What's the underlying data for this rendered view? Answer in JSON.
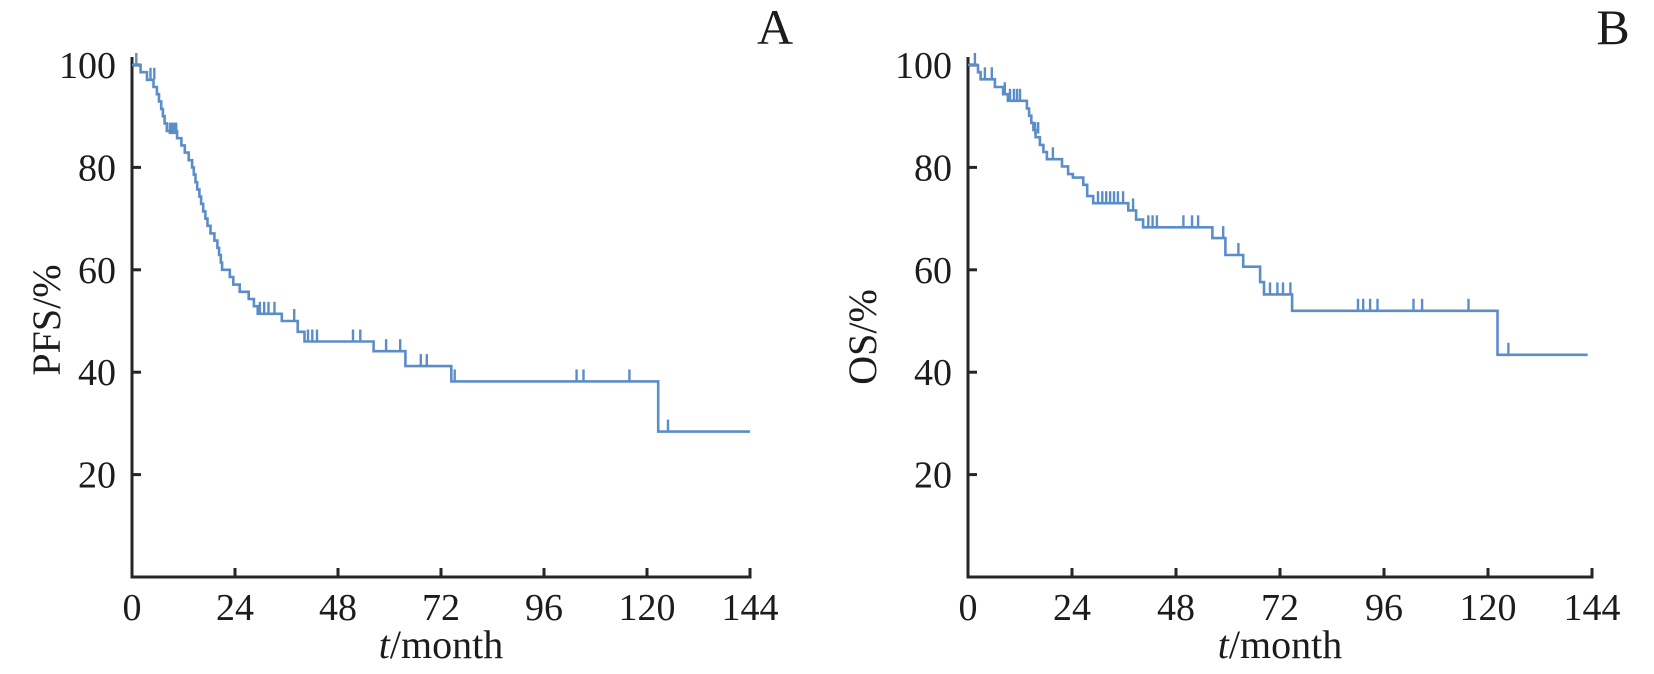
{
  "figure": {
    "background": "#ffffff",
    "curve_color": "#5b8dc9",
    "axis_color": "#262626"
  },
  "chart_data": [
    {
      "type": "line",
      "subtype": "kaplan-meier-step-curve",
      "panel_label": "A",
      "ylabel": "PFS/%",
      "xlabel_variable": "t",
      "xlabel_unit": "/month",
      "xlim": [
        0,
        144
      ],
      "ylim": [
        0,
        100
      ],
      "xticks": [
        0,
        24,
        48,
        72,
        96,
        120,
        144
      ],
      "yticks": [
        20,
        40,
        60,
        80,
        100
      ],
      "grid": false,
      "legend": null,
      "t_end": 144,
      "steps": [
        [
          0,
          100
        ],
        [
          2,
          98.6
        ],
        [
          3.5,
          97.1
        ],
        [
          5,
          95.7
        ],
        [
          5.8,
          94.3
        ],
        [
          6.3,
          92.9
        ],
        [
          6.8,
          91.4
        ],
        [
          7.2,
          90
        ],
        [
          7.6,
          88.6
        ],
        [
          8.1,
          87.1
        ],
        [
          10.5,
          85.7
        ],
        [
          11.5,
          84.3
        ],
        [
          12.3,
          82.9
        ],
        [
          13.2,
          81.4
        ],
        [
          14,
          80
        ],
        [
          14.4,
          78.6
        ],
        [
          14.8,
          77.1
        ],
        [
          15.2,
          75.7
        ],
        [
          15.7,
          74.3
        ],
        [
          16.1,
          72.9
        ],
        [
          16.6,
          71.4
        ],
        [
          17.1,
          70
        ],
        [
          17.6,
          68.6
        ],
        [
          18.3,
          67.1
        ],
        [
          19.2,
          65.7
        ],
        [
          19.9,
          64.3
        ],
        [
          20.3,
          62.9
        ],
        [
          20.7,
          61.4
        ],
        [
          21,
          60
        ],
        [
          22.8,
          58.6
        ],
        [
          23.6,
          57.1
        ],
        [
          25.1,
          55.7
        ],
        [
          27.2,
          54.3
        ],
        [
          28.4,
          52.9
        ],
        [
          29.3,
          51.4
        ],
        [
          34.9,
          50
        ],
        [
          38.6,
          47.9
        ],
        [
          40.2,
          46
        ],
        [
          56.3,
          44.1
        ],
        [
          63.7,
          41.2
        ],
        [
          74.4,
          38.2
        ],
        [
          122.6,
          28.4
        ]
      ],
      "censors": [
        [
          1,
          100
        ],
        [
          4.3,
          97.1
        ],
        [
          5.2,
          97.1
        ],
        [
          8.8,
          86.4
        ],
        [
          9.3,
          86.4
        ],
        [
          9.8,
          86.4
        ],
        [
          10.3,
          86.4
        ],
        [
          29.8,
          51.4
        ],
        [
          30.8,
          51.4
        ],
        [
          31.8,
          51.4
        ],
        [
          33.2,
          51.4
        ],
        [
          37.8,
          50
        ],
        [
          41,
          46
        ],
        [
          42,
          46
        ],
        [
          43.1,
          46
        ],
        [
          51.5,
          46
        ],
        [
          53.2,
          46
        ],
        [
          59.2,
          44.1
        ],
        [
          62.5,
          44.1
        ],
        [
          67.3,
          41.2
        ],
        [
          68.7,
          41.2
        ],
        [
          75.2,
          38.2
        ],
        [
          103.6,
          38.2
        ],
        [
          105.2,
          38.2
        ],
        [
          115.9,
          38.2
        ],
        [
          124.9,
          28.4
        ]
      ]
    },
    {
      "type": "line",
      "subtype": "kaplan-meier-step-curve",
      "panel_label": "B",
      "ylabel": "OS/%",
      "xlabel_variable": "t",
      "xlabel_unit": "/month",
      "xlim": [
        0,
        144
      ],
      "ylim": [
        0,
        100
      ],
      "xticks": [
        0,
        24,
        48,
        72,
        96,
        120,
        144
      ],
      "yticks": [
        20,
        40,
        60,
        80,
        100
      ],
      "grid": false,
      "legend": null,
      "t_end": 143,
      "steps": [
        [
          0,
          100
        ],
        [
          2.3,
          98.6
        ],
        [
          2.9,
          97.2
        ],
        [
          6.2,
          95.7
        ],
        [
          8.1,
          94.3
        ],
        [
          9.2,
          93
        ],
        [
          13.6,
          91.5
        ],
        [
          14.1,
          90.1
        ],
        [
          14.6,
          88.7
        ],
        [
          15.1,
          87.3
        ],
        [
          15.6,
          85.9
        ],
        [
          16.6,
          84.4
        ],
        [
          17.4,
          83
        ],
        [
          18.2,
          81.6
        ],
        [
          21.7,
          80.2
        ],
        [
          23.1,
          78.7
        ],
        [
          24.2,
          78
        ],
        [
          26.6,
          76.6
        ],
        [
          27.5,
          74.4
        ],
        [
          28.9,
          73
        ],
        [
          37,
          71.6
        ],
        [
          38.8,
          69.8
        ],
        [
          40.4,
          68.3
        ],
        [
          56.4,
          66.2
        ],
        [
          59.4,
          62.9
        ],
        [
          63.5,
          60.6
        ],
        [
          67.4,
          57.6
        ],
        [
          68.3,
          55.2
        ],
        [
          74.8,
          52
        ],
        [
          122.2,
          43.4
        ]
      ],
      "censors": [
        [
          1.6,
          100
        ],
        [
          3.9,
          97.2
        ],
        [
          5.5,
          97.2
        ],
        [
          8.5,
          94.3
        ],
        [
          9.7,
          93
        ],
        [
          10.6,
          93
        ],
        [
          11.3,
          93
        ],
        [
          12,
          93
        ],
        [
          15.5,
          86.5
        ],
        [
          16.2,
          86.5
        ],
        [
          19.6,
          81.6
        ],
        [
          30,
          73
        ],
        [
          31,
          73
        ],
        [
          31.9,
          73
        ],
        [
          32.8,
          73
        ],
        [
          33.7,
          73
        ],
        [
          34.6,
          73
        ],
        [
          35.8,
          73
        ],
        [
          38.1,
          71.6
        ],
        [
          41.6,
          68.3
        ],
        [
          42.6,
          68.3
        ],
        [
          43.6,
          68.3
        ],
        [
          49.7,
          68.3
        ],
        [
          51.7,
          68.3
        ],
        [
          53.1,
          68.3
        ],
        [
          58.9,
          66.2
        ],
        [
          62.4,
          62.9
        ],
        [
          69.7,
          55.2
        ],
        [
          71.4,
          55.2
        ],
        [
          72.7,
          55.2
        ],
        [
          74.4,
          55.2
        ],
        [
          90,
          52
        ],
        [
          91.2,
          52
        ],
        [
          92.8,
          52
        ],
        [
          94.5,
          52
        ],
        [
          102.8,
          52
        ],
        [
          104.8,
          52
        ],
        [
          115.5,
          52
        ],
        [
          124.7,
          43.4
        ]
      ]
    }
  ]
}
